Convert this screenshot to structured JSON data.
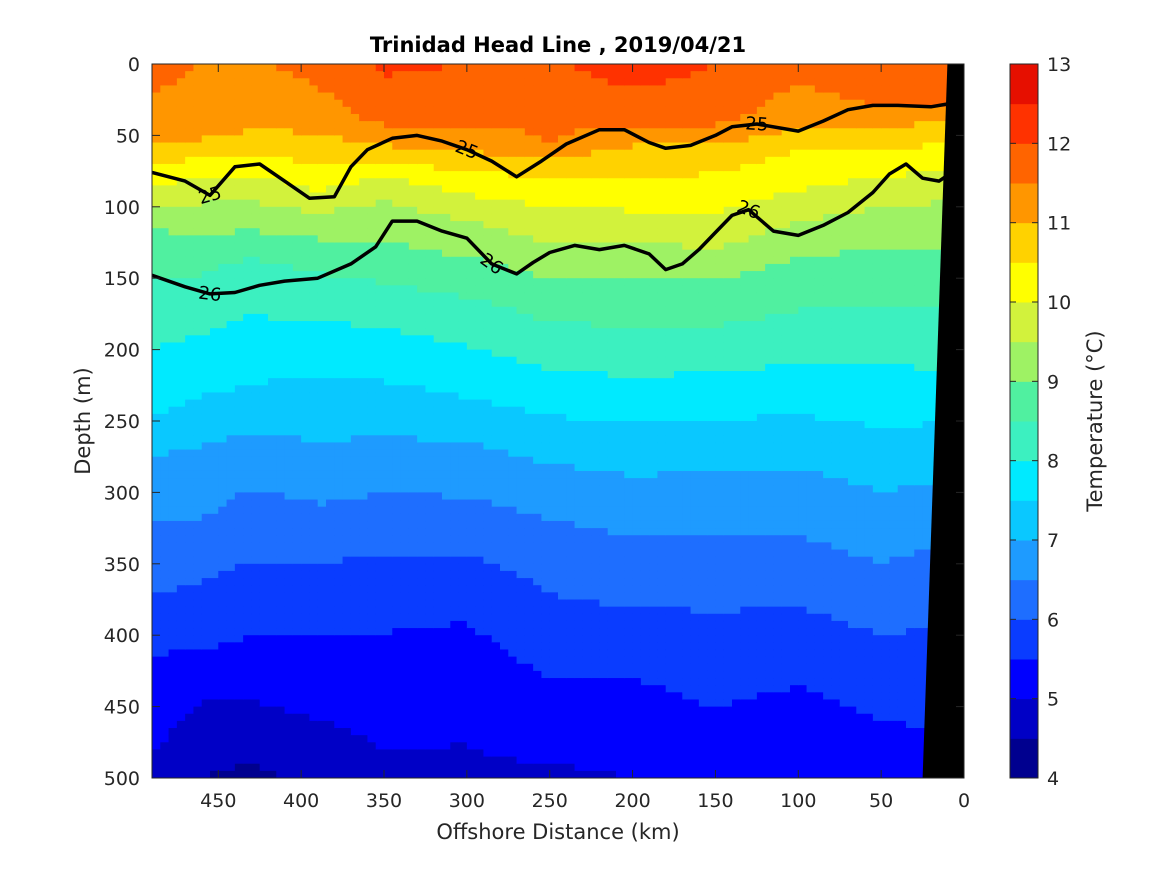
{
  "chart_data": {
    "type": "heatmap",
    "subtype": "filled-contour-section",
    "title": "Trinidad Head Line , 2019/04/21",
    "xlabel": "Offshore Distance (km)",
    "ylabel": "Depth (m)",
    "xlim": [
      490,
      0
    ],
    "x_reversed": true,
    "ylim": [
      0,
      500
    ],
    "y_reversed": true,
    "xticks": [
      450,
      400,
      350,
      300,
      250,
      200,
      150,
      100,
      50,
      0
    ],
    "yticks": [
      0,
      50,
      100,
      150,
      200,
      250,
      300,
      350,
      400,
      450,
      500
    ],
    "colorbar": {
      "label": "Temperature (°C)",
      "ticks": [
        4,
        5,
        6,
        7,
        8,
        9,
        10,
        11,
        12,
        13
      ],
      "range": [
        4,
        13
      ],
      "levels": [
        4,
        4.5,
        5,
        5.5,
        6,
        6.5,
        7,
        7.5,
        8,
        8.5,
        9,
        9.5,
        10,
        10.5,
        11,
        11.5,
        12,
        12.5,
        13
      ],
      "colors": [
        "#00008f",
        "#0000c6",
        "#0000ff",
        "#0a3cff",
        "#1e6eff",
        "#1e9bff",
        "#0ac8ff",
        "#00eaff",
        "#3cf0c0",
        "#50f0a0",
        "#9ef264",
        "#d2f23c",
        "#ffff00",
        "#ffd200",
        "#ff9600",
        "#ff6400",
        "#ff3200",
        "#e60f00",
        "#a00000"
      ]
    },
    "temperature_profiles": [
      {
        "x": 490,
        "depth_temp": [
          [
            0,
            11.6
          ],
          [
            45,
            11.4
          ],
          [
            75,
            10.4
          ],
          [
            90,
            9.8
          ],
          [
            110,
            9.1
          ],
          [
            140,
            8.6
          ],
          [
            190,
            8.1
          ],
          [
            240,
            7.6
          ],
          [
            275,
            7.0
          ],
          [
            320,
            6.5
          ],
          [
            365,
            6.1
          ],
          [
            400,
            5.6
          ],
          [
            460,
            5.2
          ],
          [
            500,
            4.9
          ]
        ]
      },
      {
        "x": 460,
        "depth_temp": [
          [
            0,
            11.5
          ],
          [
            45,
            11.3
          ],
          [
            70,
            10.3
          ],
          [
            85,
            9.8
          ],
          [
            110,
            9.2
          ],
          [
            140,
            8.6
          ],
          [
            190,
            8.0
          ],
          [
            240,
            7.4
          ],
          [
            275,
            6.9
          ],
          [
            330,
            6.4
          ],
          [
            370,
            5.9
          ],
          [
            410,
            5.5
          ],
          [
            470,
            4.7
          ],
          [
            500,
            4.5
          ]
        ]
      },
      {
        "x": 430,
        "depth_temp": [
          [
            0,
            11.4
          ],
          [
            45,
            11.0
          ],
          [
            65,
            10.5
          ],
          [
            80,
            9.9
          ],
          [
            105,
            9.3
          ],
          [
            140,
            8.4
          ],
          [
            185,
            7.9
          ],
          [
            235,
            7.4
          ],
          [
            270,
            6.8
          ],
          [
            325,
            6.2
          ],
          [
            370,
            5.8
          ],
          [
            420,
            5.3
          ],
          [
            480,
            4.6
          ],
          [
            500,
            4.4
          ]
        ]
      },
      {
        "x": 390,
        "depth_temp": [
          [
            0,
            11.7
          ],
          [
            40,
            11.2
          ],
          [
            75,
            10.4
          ],
          [
            92,
            9.9
          ],
          [
            110,
            9.3
          ],
          [
            140,
            8.6
          ],
          [
            180,
            8.0
          ],
          [
            225,
            7.4
          ],
          [
            255,
            7.1
          ],
          [
            300,
            6.6
          ],
          [
            340,
            6.1
          ],
          [
            390,
            5.6
          ],
          [
            450,
            5.1
          ],
          [
            500,
            4.6
          ]
        ]
      },
      {
        "x": 350,
        "depth_temp": [
          [
            0,
            12.1
          ],
          [
            40,
            11.6
          ],
          [
            60,
            10.9
          ],
          [
            75,
            10.2
          ],
          [
            90,
            9.6
          ],
          [
            130,
            8.9
          ],
          [
            170,
            8.2
          ],
          [
            215,
            7.6
          ],
          [
            245,
            7.2
          ],
          [
            285,
            6.7
          ],
          [
            325,
            6.2
          ],
          [
            370,
            5.7
          ],
          [
            440,
            5.2
          ],
          [
            500,
            4.9
          ]
        ]
      },
      {
        "x": 300,
        "depth_temp": [
          [
            0,
            12.0
          ],
          [
            40,
            11.6
          ],
          [
            65,
            10.9
          ],
          [
            85,
            10.2
          ],
          [
            105,
            9.6
          ],
          [
            140,
            8.9
          ],
          [
            175,
            8.3
          ],
          [
            205,
            7.9
          ],
          [
            240,
            7.4
          ],
          [
            270,
            6.9
          ],
          [
            320,
            6.3
          ],
          [
            365,
            5.7
          ],
          [
            430,
            5.2
          ],
          [
            500,
            4.9
          ]
        ]
      },
      {
        "x": 250,
        "depth_temp": [
          [
            0,
            11.9
          ],
          [
            55,
            11.5
          ],
          [
            75,
            10.6
          ],
          [
            100,
            10.0
          ],
          [
            125,
            9.5
          ],
          [
            155,
            8.9
          ],
          [
            200,
            8.2
          ],
          [
            240,
            7.6
          ],
          [
            280,
            7.0
          ],
          [
            310,
            6.6
          ],
          [
            360,
            6.1
          ],
          [
            420,
            5.6
          ],
          [
            480,
            5.1
          ],
          [
            500,
            4.9
          ]
        ]
      },
      {
        "x": 200,
        "depth_temp": [
          [
            0,
            12.3
          ],
          [
            40,
            11.6
          ],
          [
            60,
            10.9
          ],
          [
            90,
            10.3
          ],
          [
            120,
            9.6
          ],
          [
            155,
            8.9
          ],
          [
            200,
            8.3
          ],
          [
            245,
            7.6
          ],
          [
            280,
            7.1
          ],
          [
            320,
            6.6
          ],
          [
            370,
            6.1
          ],
          [
            430,
            5.5
          ],
          [
            500,
            5.0
          ]
        ]
      },
      {
        "x": 150,
        "depth_temp": [
          [
            0,
            12.0
          ],
          [
            40,
            11.6
          ],
          [
            65,
            10.7
          ],
          [
            100,
            10.1
          ],
          [
            125,
            9.6
          ],
          [
            150,
            9.0
          ],
          [
            190,
            8.4
          ],
          [
            235,
            7.7
          ],
          [
            270,
            7.2
          ],
          [
            310,
            6.7
          ],
          [
            360,
            6.2
          ],
          [
            420,
            5.7
          ],
          [
            500,
            5.2
          ]
        ]
      },
      {
        "x": 100,
        "depth_temp": [
          [
            0,
            11.6
          ],
          [
            35,
            11.3
          ],
          [
            60,
            10.5
          ],
          [
            85,
            10.1
          ],
          [
            105,
            9.6
          ],
          [
            135,
            9.0
          ],
          [
            180,
            8.4
          ],
          [
            225,
            7.8
          ],
          [
            260,
            7.3
          ],
          [
            300,
            6.8
          ],
          [
            350,
            6.3
          ],
          [
            400,
            5.8
          ],
          [
            460,
            5.3
          ],
          [
            500,
            5.1
          ]
        ]
      },
      {
        "x": 50,
        "depth_temp": [
          [
            0,
            11.9
          ],
          [
            30,
            11.5
          ],
          [
            50,
            10.8
          ],
          [
            70,
            10.2
          ],
          [
            90,
            9.7
          ],
          [
            120,
            9.1
          ],
          [
            160,
            8.6
          ],
          [
            200,
            8.1
          ],
          [
            245,
            7.6
          ],
          [
            290,
            7.1
          ],
          [
            330,
            6.7
          ],
          [
            370,
            6.3
          ],
          [
            420,
            5.8
          ],
          [
            500,
            5.2
          ]
        ]
      },
      {
        "x": 10,
        "depth_temp": [
          [
            0,
            11.9
          ],
          [
            30,
            11.5
          ],
          [
            50,
            10.6
          ],
          [
            70,
            10.2
          ],
          [
            90,
            9.6
          ],
          [
            130,
            9.0
          ],
          [
            180,
            8.4
          ],
          [
            225,
            7.9
          ],
          [
            265,
            7.3
          ],
          [
            310,
            6.8
          ],
          [
            345,
            6.4
          ],
          [
            390,
            6.0
          ],
          [
            450,
            5.6
          ],
          [
            500,
            5.3
          ]
        ]
      }
    ],
    "density_contours": [
      {
        "label": "25",
        "bold": true,
        "points": [
          [
            490,
            76
          ],
          [
            470,
            82
          ],
          [
            455,
            92
          ],
          [
            440,
            72
          ],
          [
            425,
            70
          ],
          [
            410,
            82
          ],
          [
            395,
            94
          ],
          [
            380,
            93
          ],
          [
            370,
            72
          ],
          [
            360,
            60
          ],
          [
            345,
            52
          ],
          [
            330,
            50
          ],
          [
            315,
            54
          ],
          [
            300,
            60
          ],
          [
            285,
            68
          ],
          [
            270,
            79
          ],
          [
            255,
            68
          ],
          [
            240,
            56
          ],
          [
            220,
            46
          ],
          [
            205,
            46
          ],
          [
            190,
            55
          ],
          [
            180,
            59
          ],
          [
            165,
            57
          ],
          [
            150,
            50
          ],
          [
            140,
            44
          ],
          [
            125,
            42
          ],
          [
            100,
            47
          ],
          [
            85,
            40
          ],
          [
            70,
            32
          ],
          [
            55,
            29
          ],
          [
            40,
            29
          ],
          [
            20,
            30
          ],
          [
            10,
            28
          ]
        ]
      },
      {
        "label": "26",
        "bold": true,
        "points": [
          [
            490,
            148
          ],
          [
            470,
            156
          ],
          [
            455,
            161
          ],
          [
            440,
            160
          ],
          [
            425,
            155
          ],
          [
            410,
            152
          ],
          [
            390,
            150
          ],
          [
            370,
            140
          ],
          [
            355,
            128
          ],
          [
            345,
            110
          ],
          [
            330,
            110
          ],
          [
            315,
            117
          ],
          [
            300,
            122
          ],
          [
            285,
            140
          ],
          [
            270,
            147
          ],
          [
            260,
            139
          ],
          [
            250,
            132
          ],
          [
            235,
            127
          ],
          [
            220,
            130
          ],
          [
            205,
            127
          ],
          [
            190,
            133
          ],
          [
            180,
            144
          ],
          [
            170,
            140
          ],
          [
            160,
            130
          ],
          [
            150,
            118
          ],
          [
            140,
            106
          ],
          [
            130,
            102
          ],
          [
            115,
            117
          ],
          [
            100,
            120
          ],
          [
            85,
            113
          ],
          [
            70,
            104
          ],
          [
            55,
            90
          ],
          [
            45,
            77
          ],
          [
            35,
            70
          ],
          [
            25,
            80
          ],
          [
            15,
            82
          ],
          [
            10,
            78
          ]
        ]
      }
    ],
    "bathymetry": {
      "color": "#000000",
      "points": [
        [
          0,
          0
        ],
        [
          10,
          0
        ],
        [
          25,
          500
        ],
        [
          0,
          500
        ]
      ]
    }
  }
}
